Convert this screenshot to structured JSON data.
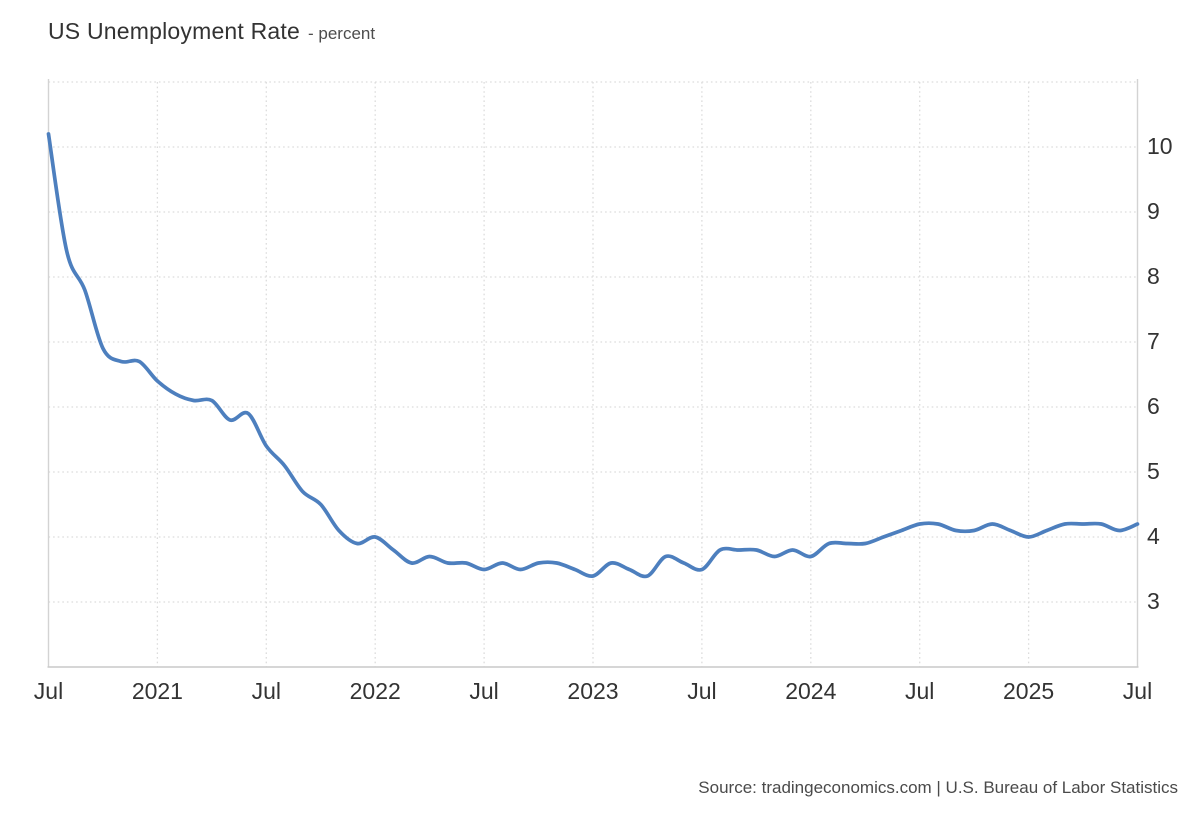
{
  "header": {
    "title": "US Unemployment Rate",
    "subtitle": "- percent"
  },
  "footer": {
    "source_text": "Source: tradingeconomics.com | U.S. Bureau of Labor Statistics"
  },
  "chart_data": {
    "type": "line",
    "title": "US Unemployment Rate",
    "ylabel": "percent",
    "xlabel": "",
    "grid": true,
    "legend": "none",
    "x_start": "2020-07",
    "x_end": "2025-07",
    "x": [
      "2020-07",
      "2020-08",
      "2020-09",
      "2020-10",
      "2020-11",
      "2020-12",
      "2021-01",
      "2021-02",
      "2021-03",
      "2021-04",
      "2021-05",
      "2021-06",
      "2021-07",
      "2021-08",
      "2021-09",
      "2021-10",
      "2021-11",
      "2021-12",
      "2022-01",
      "2022-02",
      "2022-03",
      "2022-04",
      "2022-05",
      "2022-06",
      "2022-07",
      "2022-08",
      "2022-09",
      "2022-10",
      "2022-11",
      "2022-12",
      "2023-01",
      "2023-02",
      "2023-03",
      "2023-04",
      "2023-05",
      "2023-06",
      "2023-07",
      "2023-08",
      "2023-09",
      "2023-10",
      "2023-11",
      "2023-12",
      "2024-01",
      "2024-02",
      "2024-03",
      "2024-04",
      "2024-05",
      "2024-06",
      "2024-07",
      "2024-08",
      "2024-09",
      "2024-10",
      "2024-11",
      "2024-12",
      "2025-01",
      "2025-02",
      "2025-03",
      "2025-04",
      "2025-05",
      "2025-06",
      "2025-07"
    ],
    "values": [
      10.2,
      8.4,
      7.8,
      6.9,
      6.7,
      6.7,
      6.4,
      6.2,
      6.1,
      6.1,
      5.8,
      5.9,
      5.4,
      5.1,
      4.7,
      4.5,
      4.1,
      3.9,
      4.0,
      3.8,
      3.6,
      3.7,
      3.6,
      3.6,
      3.5,
      3.6,
      3.5,
      3.6,
      3.6,
      3.5,
      3.4,
      3.6,
      3.5,
      3.4,
      3.7,
      3.6,
      3.5,
      3.8,
      3.8,
      3.8,
      3.7,
      3.8,
      3.7,
      3.9,
      3.9,
      3.9,
      4.0,
      4.1,
      4.2,
      4.2,
      4.1,
      4.1,
      4.2,
      4.1,
      4.0,
      4.1,
      4.2,
      4.2,
      4.2,
      4.1,
      4.2
    ],
    "x_tick_labels": [
      {
        "month_index": 0,
        "label": "Jul"
      },
      {
        "month_index": 6,
        "label": "2021"
      },
      {
        "month_index": 12,
        "label": "Jul"
      },
      {
        "month_index": 18,
        "label": "2022"
      },
      {
        "month_index": 24,
        "label": "Jul"
      },
      {
        "month_index": 30,
        "label": "2023"
      },
      {
        "month_index": 36,
        "label": "Jul"
      },
      {
        "month_index": 42,
        "label": "2024"
      },
      {
        "month_index": 48,
        "label": "Jul"
      },
      {
        "month_index": 54,
        "label": "2025"
      },
      {
        "month_index": 60,
        "label": "Jul"
      }
    ],
    "y_ticks": [
      3,
      4,
      5,
      6,
      7,
      8,
      9,
      10
    ],
    "ylim": [
      2,
      11
    ],
    "colors": {
      "line": "#4d7fbe",
      "grid": "#dcdcdc",
      "frame": "#d3d3d3",
      "axis_label": "#333333"
    }
  }
}
